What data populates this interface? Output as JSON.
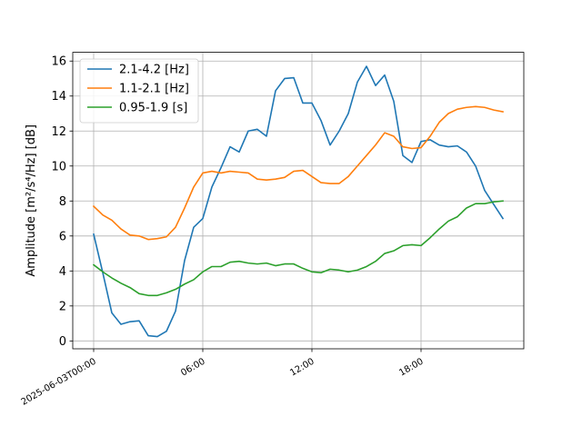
{
  "chart_data": {
    "type": "line",
    "title": "",
    "xlabel": "",
    "ylabel": "Amplitude [m²/s⁴/Hz] [dB]",
    "x_hours": [
      0,
      0.5,
      1,
      1.5,
      2,
      2.5,
      3,
      3.5,
      4,
      4.5,
      5,
      5.5,
      6,
      6.5,
      7,
      7.5,
      8,
      8.5,
      9,
      9.5,
      10,
      10.5,
      11,
      11.5,
      12,
      12.5,
      13,
      13.5,
      14,
      14.5,
      15,
      15.5,
      16,
      16.5,
      17,
      17.5,
      18,
      18.5,
      19,
      19.5,
      20,
      20.5,
      21,
      21.5,
      22,
      22.5
    ],
    "xticks": [
      {
        "hour": 0,
        "label": "2025-06-03T00:00"
      },
      {
        "hour": 6,
        "label": "06:00"
      },
      {
        "hour": 12,
        "label": "12:00"
      },
      {
        "hour": 18,
        "label": "18:00"
      }
    ],
    "yticks": [
      0,
      2,
      4,
      6,
      8,
      10,
      12,
      14,
      16
    ],
    "xlim": [
      -1.15,
      23.65
    ],
    "ylim": [
      -0.45,
      16.5
    ],
    "grid": true,
    "legend_position": "top-left",
    "series": [
      {
        "name": "2.1-4.2 [Hz]",
        "color": "#1f77b4",
        "values": [
          6.1,
          3.9,
          1.6,
          0.95,
          1.1,
          1.15,
          0.3,
          0.25,
          0.55,
          1.7,
          4.6,
          6.5,
          7.0,
          8.8,
          9.9,
          11.1,
          10.8,
          12.0,
          12.1,
          11.7,
          14.3,
          15.0,
          15.05,
          13.6,
          13.6,
          12.6,
          11.2,
          12.0,
          13.0,
          14.8,
          15.7,
          14.6,
          15.2,
          13.7,
          10.6,
          10.2,
          11.4,
          11.5,
          11.2,
          11.1,
          11.15,
          10.8,
          10.0,
          8.6,
          7.8,
          7.0
        ]
      },
      {
        "name": "1.1-2.1 [Hz]",
        "color": "#ff7f0e",
        "values": [
          7.7,
          7.2,
          6.9,
          6.4,
          6.05,
          6.0,
          5.8,
          5.85,
          5.95,
          6.5,
          7.6,
          8.8,
          9.6,
          9.7,
          9.6,
          9.7,
          9.65,
          9.6,
          9.25,
          9.2,
          9.25,
          9.35,
          9.7,
          9.75,
          9.4,
          9.05,
          9.0,
          9.0,
          9.4,
          10.0,
          10.6,
          11.2,
          11.9,
          11.7,
          11.1,
          11.0,
          11.05,
          11.7,
          12.5,
          13.0,
          13.25,
          13.35,
          13.4,
          13.35,
          13.2,
          13.1
        ]
      },
      {
        "name": "0.95-1.9 [s]",
        "color": "#2ca02c",
        "values": [
          4.35,
          3.95,
          3.6,
          3.3,
          3.05,
          2.7,
          2.6,
          2.6,
          2.75,
          2.95,
          3.25,
          3.5,
          3.95,
          4.25,
          4.25,
          4.5,
          4.55,
          4.45,
          4.4,
          4.45,
          4.3,
          4.4,
          4.4,
          4.15,
          3.95,
          3.9,
          4.1,
          4.05,
          3.95,
          4.05,
          4.25,
          4.55,
          5.0,
          5.15,
          5.45,
          5.5,
          5.45,
          5.9,
          6.4,
          6.85,
          7.1,
          7.6,
          7.85,
          7.85,
          7.95,
          8.0
        ]
      }
    ]
  }
}
